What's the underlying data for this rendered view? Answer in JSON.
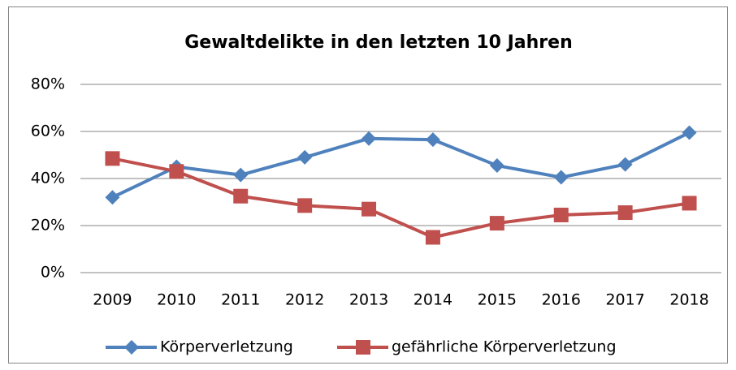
{
  "chart_data": {
    "type": "line",
    "title": "Gewaltdelikte in den letzten 10 Jahren",
    "categories": [
      "2009",
      "2010",
      "2011",
      "2012",
      "2013",
      "2014",
      "2015",
      "2016",
      "2017",
      "2018"
    ],
    "series": [
      {
        "name": "Körperverletzung",
        "color": "#4f81bd",
        "marker": "diamond",
        "values": [
          32,
          45,
          41.5,
          49,
          57,
          56.5,
          45.5,
          40.5,
          46,
          59.5
        ]
      },
      {
        "name": "gefährliche Körperverletzung",
        "color": "#c0504d",
        "marker": "square",
        "values": [
          48.5,
          43,
          32.5,
          28.5,
          27,
          15,
          21,
          24.5,
          25.5,
          29.5
        ]
      }
    ],
    "ylim": [
      0,
      80
    ],
    "yticks": [
      {
        "value": 0,
        "label": "0%"
      },
      {
        "value": 20,
        "label": "20%"
      },
      {
        "value": 40,
        "label": "40%"
      },
      {
        "value": 60,
        "label": "60%"
      },
      {
        "value": 80,
        "label": "80%"
      }
    ],
    "grid": true,
    "legend": "bottom"
  }
}
